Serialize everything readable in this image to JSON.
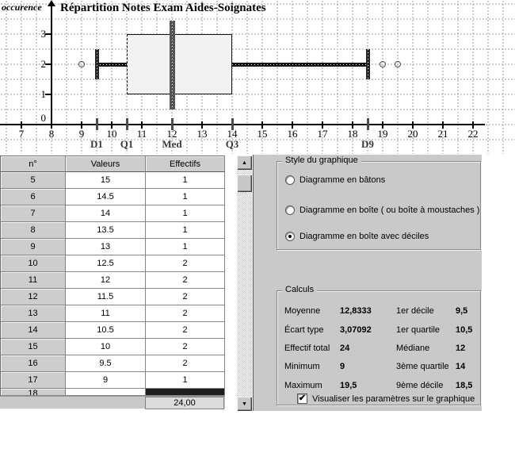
{
  "colors": {
    "panel_bg": "#c9c9c9",
    "table_header_bg": "#cdcdcd",
    "selection_black": "#1c1c1c",
    "box_fill": "#f2f2f2"
  },
  "chart": {
    "title": "Répartition Notes Exam Aides-Soignates",
    "y_axis_label": "occurence"
  },
  "chart_data": {
    "type": "boxplot",
    "title": "Répartition Notes Exam Aides-Soignates",
    "ylabel": "occurence",
    "xlabel": "",
    "x_ticks": [
      7,
      8,
      9,
      10,
      11,
      12,
      13,
      14,
      15,
      16,
      17,
      18,
      19,
      20,
      21,
      22
    ],
    "y_ticks": [
      0,
      1,
      2,
      3
    ],
    "xlim": [
      7,
      22
    ],
    "ylim": [
      0,
      3.5
    ],
    "grid": "dotted",
    "box": {
      "q1": 10.5,
      "median": 12,
      "q3": 14,
      "d1": 9.5,
      "d9": 18.5,
      "min": 9,
      "max": 19.5
    },
    "box_y": [
      1,
      3
    ],
    "median_bar_y": [
      0.5,
      3.45
    ],
    "decile_bar_y": [
      1.5,
      2.5
    ],
    "whisker_y": 2,
    "outliers": [
      9,
      19,
      19.5
    ],
    "parameters": [
      {
        "label": "D1",
        "value": 9.5
      },
      {
        "label": "Q1",
        "value": 10.5
      },
      {
        "label": "Med",
        "value": 12
      },
      {
        "label": "Q3",
        "value": 14
      },
      {
        "label": "D9",
        "value": 18.5
      }
    ]
  },
  "table": {
    "columns": [
      "n°",
      "Valeurs",
      "Effectifs"
    ],
    "rows": [
      [
        "5",
        "15",
        "1"
      ],
      [
        "6",
        "14.5",
        "1"
      ],
      [
        "7",
        "14",
        "1"
      ],
      [
        "8",
        "13.5",
        "1"
      ],
      [
        "9",
        "13",
        "1"
      ],
      [
        "10",
        "12.5",
        "2"
      ],
      [
        "11",
        "12",
        "2"
      ],
      [
        "12",
        "11.5",
        "2"
      ],
      [
        "13",
        "11",
        "2"
      ],
      [
        "14",
        "10.5",
        "2"
      ],
      [
        "15",
        "10",
        "2"
      ],
      [
        "16",
        "9.5",
        "2"
      ],
      [
        "17",
        "9",
        "1"
      ]
    ],
    "partial_row_n": "18",
    "footer_total": "24,00"
  },
  "scrollbar": {
    "up_icon": "▲",
    "down_icon": "▼"
  },
  "style_group": {
    "title": "Style du graphique",
    "options": [
      {
        "label": "Diagramme en bâtons",
        "selected": false
      },
      {
        "label": "Diagramme en boîte ( ou boîte à moustaches )",
        "selected": false
      },
      {
        "label": "Diagramme en boîte avec déciles",
        "selected": true
      }
    ]
  },
  "calculs": {
    "title": "Calculs",
    "stats": [
      {
        "label": "Moyenne",
        "value": "12,8333",
        "label2": "1er décile",
        "value2": "9,5"
      },
      {
        "label": "Écart type",
        "value": "3,07092",
        "label2": "1er quartile",
        "value2": "10,5"
      },
      {
        "label": "Effectif total",
        "value": "24",
        "label2": "Médiane",
        "value2": "12"
      },
      {
        "label": "Minimum",
        "value": "9",
        "label2": "3ème quartile",
        "value2": "14"
      },
      {
        "label": "Maximum",
        "value": "19,5",
        "label2": "9ème décile",
        "value2": "18,5"
      }
    ],
    "checkbox": {
      "label": "Visualiser les paramètres sur le graphique",
      "checked": true,
      "check_icon": "✔"
    }
  }
}
